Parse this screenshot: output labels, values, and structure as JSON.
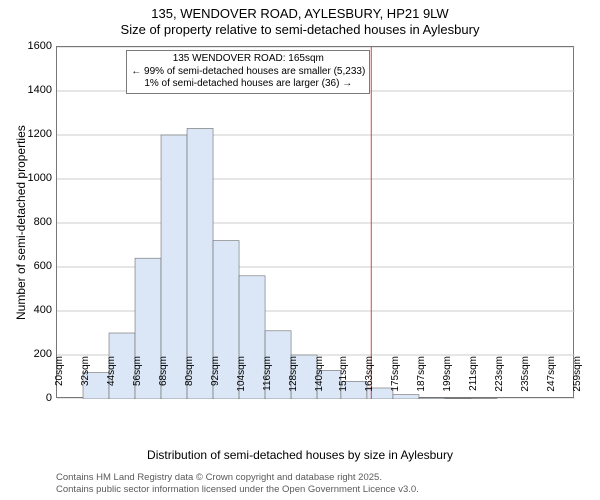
{
  "title": {
    "line1": "135, WENDOVER ROAD, AYLESBURY, HP21 9LW",
    "line2": "Size of property relative to semi-detached houses in Aylesbury"
  },
  "chart": {
    "type": "histogram",
    "background_color": "#ffffff",
    "plot_border_color": "#777777",
    "grid_color": "#cccccc",
    "bar_fill": "#dbe7f6",
    "bar_border": "#6b6b6b",
    "ylim": [
      0,
      1600
    ],
    "ytick_step": 200,
    "yticks": [
      0,
      200,
      400,
      600,
      800,
      1000,
      1200,
      1400,
      1600
    ],
    "ylabel": "Number of semi-detached properties",
    "ylabel_fontsize": 12,
    "xlabel": "Distribution of semi-detached houses by size in Aylesbury",
    "xlabel_fontsize": 12,
    "xticks": [
      "20sqm",
      "32sqm",
      "44sqm",
      "56sqm",
      "68sqm",
      "80sqm",
      "92sqm",
      "104sqm",
      "116sqm",
      "128sqm",
      "140sqm",
      "151sqm",
      "163sqm",
      "175sqm",
      "187sqm",
      "199sqm",
      "211sqm",
      "223sqm",
      "235sqm",
      "247sqm",
      "259sqm"
    ],
    "xtick_rotation_deg": -90,
    "bar_boundaries_sqm": [
      20,
      32,
      44,
      56,
      68,
      80,
      92,
      104,
      116,
      128,
      140,
      151,
      163,
      175,
      187,
      199,
      211,
      223,
      235,
      247,
      259
    ],
    "bar_values": [
      0,
      120,
      300,
      640,
      1200,
      1230,
      720,
      560,
      310,
      200,
      130,
      80,
      50,
      20,
      5,
      3,
      2,
      0,
      0,
      0
    ],
    "marker": {
      "position_sqm": 165,
      "color": "#d64545"
    }
  },
  "annotation": {
    "line1": "135 WENDOVER ROAD: 165sqm",
    "line2": "← 99% of semi-detached houses are smaller (5,233)",
    "line3": "1% of semi-detached houses are larger (36) →",
    "border_color": "#7a7a7a",
    "background_color": "#ffffff",
    "fontsize": 10
  },
  "footer": {
    "line1": "Contains HM Land Registry data © Crown copyright and database right 2025.",
    "line2": "Contains public sector information licensed under the Open Government Licence v3.0."
  }
}
